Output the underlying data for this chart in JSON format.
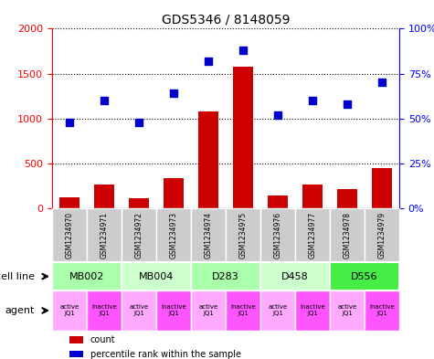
{
  "title": "GDS5346 / 8148059",
  "samples": [
    "GSM1234970",
    "GSM1234971",
    "GSM1234972",
    "GSM1234973",
    "GSM1234974",
    "GSM1234975",
    "GSM1234976",
    "GSM1234977",
    "GSM1234978",
    "GSM1234979"
  ],
  "counts": [
    120,
    260,
    115,
    340,
    1080,
    1580,
    145,
    260,
    210,
    450
  ],
  "percentiles": [
    48,
    60,
    48,
    64,
    82,
    88,
    52,
    60,
    58,
    70
  ],
  "cell_lines": [
    {
      "label": "MB002",
      "cols": [
        0,
        1
      ],
      "color": "#aaffaa"
    },
    {
      "label": "MB004",
      "cols": [
        2,
        3
      ],
      "color": "#ccffcc"
    },
    {
      "label": "D283",
      "cols": [
        4,
        5
      ],
      "color": "#aaffaa"
    },
    {
      "label": "D458",
      "cols": [
        6,
        7
      ],
      "color": "#ccffcc"
    },
    {
      "label": "D556",
      "cols": [
        8,
        9
      ],
      "color": "#44ee44"
    }
  ],
  "agents": [
    "active\nJQ1",
    "inactive\nJQ1",
    "active\nJQ1",
    "inactive\nJQ1",
    "active\nJQ1",
    "inactive\nJQ1",
    "active\nJQ1",
    "inactive\nJQ1",
    "active\nJQ1",
    "inactive\nJQ1"
  ],
  "agent_colors": [
    "#ffaaff",
    "#ff55ff",
    "#ffaaff",
    "#ff55ff",
    "#ffaaff",
    "#ff55ff",
    "#ffaaff",
    "#ff55ff",
    "#ffaaff",
    "#ff55ff"
  ],
  "bar_color": "#cc0000",
  "dot_color": "#0000cc",
  "ylim_left": [
    0,
    2000
  ],
  "ylim_right": [
    0,
    100
  ],
  "yticks_left": [
    0,
    500,
    1000,
    1500,
    2000
  ],
  "ytick_labels_left": [
    "0",
    "500",
    "1000",
    "1500",
    "2000"
  ],
  "yticks_right": [
    0,
    25,
    50,
    75,
    100
  ],
  "ytick_labels_right": [
    "0%",
    "25%",
    "50%",
    "75%",
    "100%"
  ],
  "legend_items": [
    {
      "color": "#cc0000",
      "label": "count"
    },
    {
      "color": "#0000cc",
      "label": "percentile rank within the sample"
    }
  ],
  "sample_row_color": "#cccccc",
  "cell_line_label": "cell line",
  "agent_label": "agent"
}
